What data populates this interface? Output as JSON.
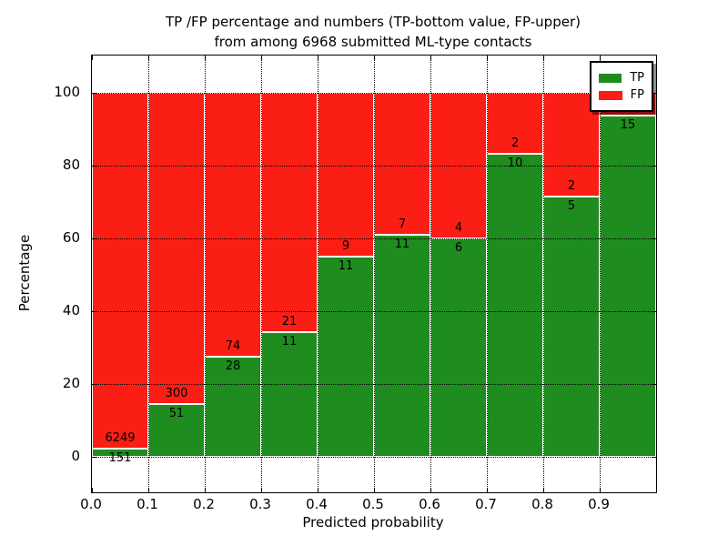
{
  "title": {
    "line1": "TP /FP percentage and numbers (TP-bottom value, FP-upper)",
    "line2": "from among 6968 submitted ML-type contacts"
  },
  "axes": {
    "xlabel": "Predicted probability",
    "ylabel": "Percentage"
  },
  "chart_data": {
    "type": "bar",
    "subtype": "stacked-percentage",
    "title": "TP /FP percentage and numbers (TP-bottom value, FP-upper) from among 6968 submitted ML-type contacts",
    "xlabel": "Predicted probability",
    "ylabel": "Percentage",
    "total_submitted_contacts": 6968,
    "x_tick_labels": [
      "0.0",
      "0.1",
      "0.2",
      "0.3",
      "0.4",
      "0.5",
      "0.6",
      "0.7",
      "0.8",
      "0.9"
    ],
    "x_bin_width": 0.1,
    "xlim": [
      0.0,
      1.0
    ],
    "y_ticks": [
      0,
      20,
      40,
      60,
      80,
      100
    ],
    "ylim": [
      -10.25,
      110.25
    ],
    "grid": "dotted",
    "legend_position": "upper-right",
    "series": [
      {
        "name": "TP",
        "color": "#1e8c1e",
        "counts": [
          151,
          51,
          28,
          11,
          11,
          11,
          6,
          10,
          5,
          15
        ]
      },
      {
        "name": "FP",
        "color": "#fa1e14",
        "counts": [
          6249,
          300,
          74,
          21,
          9,
          7,
          4,
          2,
          2,
          1
        ]
      }
    ],
    "tp_percentages": [
      2.36,
      14.53,
      27.45,
      34.38,
      55.0,
      61.11,
      60.0,
      83.33,
      71.43,
      93.75
    ],
    "fp_percentages": [
      97.64,
      85.47,
      72.55,
      65.62,
      45.0,
      38.89,
      40.0,
      16.67,
      28.57,
      6.25
    ]
  }
}
